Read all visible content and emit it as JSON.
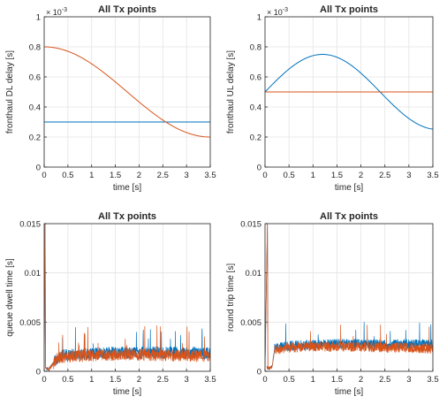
{
  "chart_data": [
    {
      "type": "line",
      "title": "All Tx points",
      "xlabel": "time [s]",
      "ylabel": "fronthaul DL delay [s]",
      "exponent_label": "× 10^{-3}",
      "xlim": [
        0,
        3.5
      ],
      "ylim": [
        0,
        0.001
      ],
      "xticks": [
        "0",
        "0.5",
        "1",
        "1.5",
        "2",
        "2.5",
        "3",
        "3.5"
      ],
      "yticks": [
        "0",
        "0.2",
        "0.4",
        "0.6",
        "0.8",
        "1"
      ],
      "grid": true,
      "series": [
        {
          "color": "#0072BD",
          "shape": "constant",
          "x": [
            0,
            3.5
          ],
          "y": [
            0.0003,
            0.0003
          ]
        },
        {
          "color": "#D95319",
          "shape": "half-cosine",
          "x": [
            0,
            0.5,
            1.0,
            1.5,
            2.0,
            2.5,
            3.0,
            3.5
          ],
          "y": [
            0.0008,
            0.000785,
            0.000701,
            0.000575,
            0.000425,
            0.000299,
            0.000215,
            0.0002
          ]
        }
      ]
    },
    {
      "type": "line",
      "title": "All Tx points",
      "xlabel": "time [s]",
      "ylabel": "fronthaul UL delay [s]",
      "exponent_label": "× 10^{-3}",
      "xlim": [
        0,
        3.5
      ],
      "ylim": [
        0,
        0.001
      ],
      "xticks": [
        "0",
        "0.5",
        "1",
        "1.5",
        "2",
        "2.5",
        "3",
        "3.5"
      ],
      "yticks": [
        "0",
        "0.2",
        "0.4",
        "0.6",
        "0.8",
        "1"
      ],
      "grid": true,
      "series": [
        {
          "color": "#0072BD",
          "shape": "sine",
          "x": [
            0,
            0.5,
            1.0,
            1.2,
            1.5,
            2.0,
            2.5,
            3.0,
            3.5
          ],
          "y": [
            0.0005,
            0.000654,
            0.000744,
            0.00075,
            0.000738,
            0.000643,
            0.000486,
            0.000338,
            0.00025
          ]
        },
        {
          "color": "#D95319",
          "shape": "constant",
          "x": [
            0,
            3.5
          ],
          "y": [
            0.0005,
            0.0005
          ]
        }
      ]
    },
    {
      "type": "line",
      "title": "All Tx points",
      "xlabel": "time [s]",
      "ylabel": "queue dwell time [s]",
      "xlim": [
        0,
        3.5
      ],
      "ylim": [
        0,
        0.015
      ],
      "xticks": [
        "0",
        "0.5",
        "1",
        "1.5",
        "2",
        "2.5",
        "3",
        "3.5"
      ],
      "yticks": [
        "0",
        "0.005",
        "0.01",
        "0.015"
      ],
      "grid": true,
      "series": [
        {
          "color": "#0072BD",
          "shape": "noisy",
          "spike": [
            0.01,
            0.015
          ],
          "x": [
            0,
            0.1,
            0.2,
            0.3,
            0.5,
            1.0,
            1.5,
            2.0,
            2.5,
            3.0,
            3.5
          ],
          "y": [
            0.0003,
            0.0002,
            0.0008,
            0.0015,
            0.0017,
            0.0018,
            0.0019,
            0.0019,
            0.0019,
            0.0019,
            0.0018
          ],
          "noise": 0.0006
        },
        {
          "color": "#D95319",
          "shape": "noisy",
          "spike": [
            0.01,
            0.015
          ],
          "x": [
            0,
            0.1,
            0.2,
            0.3,
            0.5,
            1.0,
            1.5,
            2.0,
            2.5,
            3.0,
            3.5
          ],
          "y": [
            0.0003,
            0.0002,
            0.0008,
            0.0014,
            0.0015,
            0.0016,
            0.0017,
            0.0017,
            0.0016,
            0.0016,
            0.0015
          ],
          "noise": 0.0006
        }
      ]
    },
    {
      "type": "line",
      "title": "All Tx points",
      "xlabel": "time [s]",
      "ylabel": "round trip time [s]",
      "xlim": [
        0,
        3.5
      ],
      "ylim": [
        0,
        0.015
      ],
      "xticks": [
        "0",
        "0.5",
        "1",
        "1.5",
        "2",
        "2.5",
        "3",
        "3.5"
      ],
      "yticks": [
        "0",
        "0.005",
        "0.01",
        "0.015"
      ],
      "grid": true,
      "series": [
        {
          "color": "#0072BD",
          "shape": "noisy",
          "spike": [
            0.015,
            0.015
          ],
          "x": [
            0,
            0.1,
            0.15,
            0.2,
            0.5,
            1.0,
            1.5,
            2.0,
            2.5,
            3.0,
            3.5
          ],
          "y": [
            0.0004,
            0.0003,
            0.0005,
            0.0023,
            0.0026,
            0.0027,
            0.0028,
            0.0028,
            0.0027,
            0.0028,
            0.0027
          ],
          "noise": 0.0005
        },
        {
          "color": "#D95319",
          "shape": "noisy",
          "spike": [
            0.015,
            0.015
          ],
          "x": [
            0,
            0.1,
            0.15,
            0.2,
            0.5,
            1.0,
            1.5,
            2.0,
            2.5,
            3.0,
            3.5
          ],
          "y": [
            0.0004,
            0.0003,
            0.0005,
            0.0022,
            0.0024,
            0.0025,
            0.0025,
            0.0025,
            0.0024,
            0.0024,
            0.0023
          ],
          "noise": 0.0005
        }
      ]
    }
  ]
}
